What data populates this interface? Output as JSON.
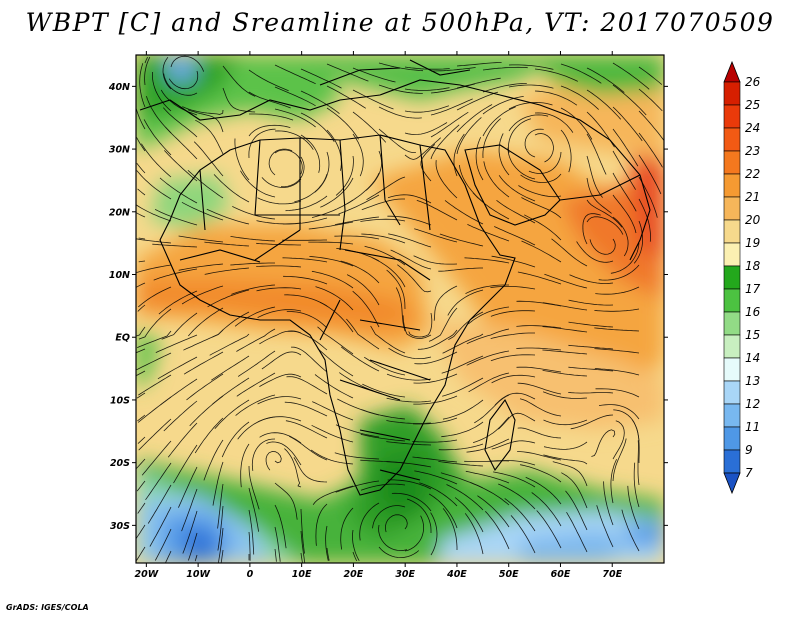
{
  "title": "WBPT [C] and Sreamline at 500hPa, VT: 2017070509",
  "footer": "GrADS: IGES/COLA",
  "map": {
    "lat_ticks": [
      "40N",
      "30N",
      "20N",
      "10N",
      "EQ",
      "10S",
      "20S",
      "30S"
    ],
    "lon_ticks": [
      "20W",
      "10W",
      "0",
      "10E",
      "20E",
      "30E",
      "40E",
      "50E",
      "60E",
      "70E"
    ],
    "lat_range": [
      -36,
      45
    ],
    "lon_range": [
      -22,
      80
    ]
  },
  "colorbar": {
    "labels": [
      "26",
      "25",
      "24",
      "23",
      "22",
      "21",
      "20",
      "19",
      "18",
      "17",
      "16",
      "15",
      "14",
      "13",
      "12",
      "11",
      "9",
      "7"
    ],
    "colors": [
      "#b80000",
      "#d61f00",
      "#ea3a0a",
      "#f25a14",
      "#f4781e",
      "#f59a32",
      "#f6b65a",
      "#f6d98c",
      "#fbf0b2",
      "#23a81c",
      "#4cc241",
      "#92db86",
      "#c8efc0",
      "#e6fbfb",
      "#a9d6f7",
      "#78b8f0",
      "#4f98e6",
      "#2a6fd6",
      "#1a52c4"
    ]
  }
}
